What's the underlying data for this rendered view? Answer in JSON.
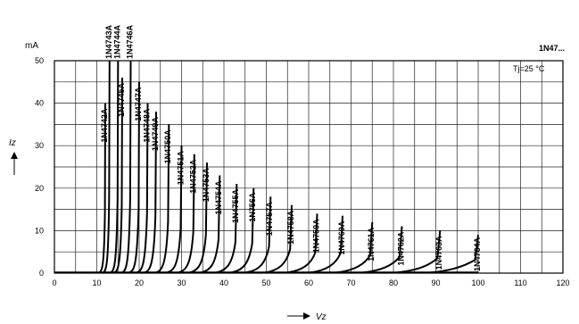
{
  "chart_data": {
    "type": "line",
    "title": "1N47...",
    "annotation": "Tj=25 °C",
    "xlabel": "Vz",
    "ylabel": "Iz",
    "yunit": "mA",
    "xlim": [
      0,
      120
    ],
    "ylim": [
      0,
      50
    ],
    "xticks": [
      0,
      10,
      20,
      30,
      40,
      50,
      60,
      70,
      80,
      90,
      100,
      110,
      120
    ],
    "yticks": [
      0,
      10,
      20,
      30,
      40,
      50
    ],
    "grid": true,
    "series": [
      {
        "name": "1N4742A",
        "vz": 12,
        "imax": 40
      },
      {
        "name": "1N4743A",
        "vz": 13,
        "imax": 50
      },
      {
        "name": "1N4744A",
        "vz": 15,
        "imax": 50
      },
      {
        "name": "1N4745A",
        "vz": 16,
        "imax": 46
      },
      {
        "name": "1N4746A",
        "vz": 18,
        "imax": 50
      },
      {
        "name": "1N4747A",
        "vz": 20,
        "imax": 45
      },
      {
        "name": "1N4748A",
        "vz": 22,
        "imax": 40
      },
      {
        "name": "1N4749A",
        "vz": 24,
        "imax": 38
      },
      {
        "name": "1N4750A",
        "vz": 27,
        "imax": 35
      },
      {
        "name": "1N4751A",
        "vz": 30,
        "imax": 30
      },
      {
        "name": "1N4752A",
        "vz": 33,
        "imax": 28
      },
      {
        "name": "1N4753A",
        "vz": 36,
        "imax": 26
      },
      {
        "name": "1N4754A",
        "vz": 39,
        "imax": 23
      },
      {
        "name": "1N4755A",
        "vz": 43,
        "imax": 21
      },
      {
        "name": "1N756A",
        "vz": 47,
        "imax": 20
      },
      {
        "name": "1N4757A",
        "vz": 51,
        "imax": 18
      },
      {
        "name": "1N4758A",
        "vz": 56,
        "imax": 16
      },
      {
        "name": "1N4759A",
        "vz": 62,
        "imax": 14
      },
      {
        "name": "1N4760A",
        "vz": 68,
        "imax": 13.5
      },
      {
        "name": "1N4761A",
        "vz": 75,
        "imax": 12
      },
      {
        "name": "1N4762A",
        "vz": 82,
        "imax": 11
      },
      {
        "name": "1N4763A",
        "vz": 91,
        "imax": 10
      },
      {
        "name": "1N4764A",
        "vz": 100,
        "imax": 9
      }
    ]
  }
}
